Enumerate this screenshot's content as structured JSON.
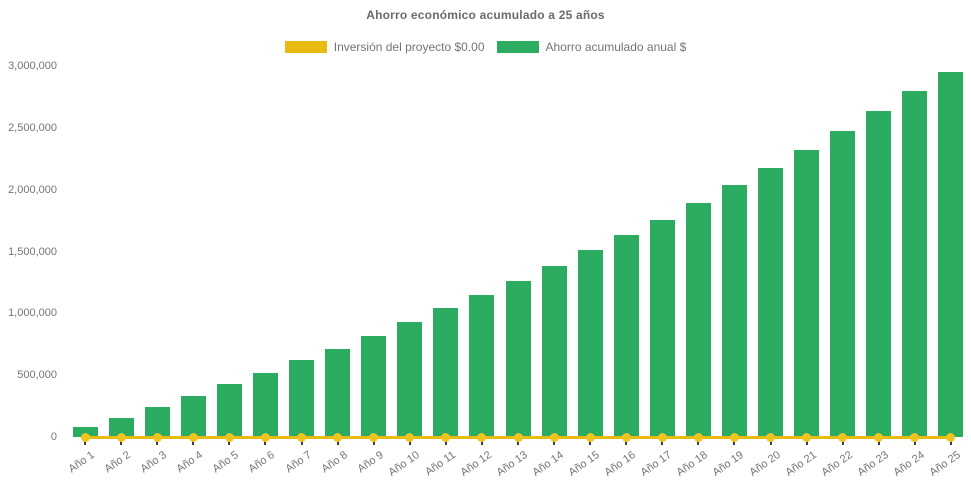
{
  "chart_data": {
    "type": "bar",
    "title": "Ahorro económico acumulado a 25 años",
    "categories": [
      "Año 1",
      "Año 2",
      "Año 3",
      "Año 4",
      "Año 5",
      "Año 6",
      "Año 7",
      "Año 8",
      "Año 9",
      "Año 10",
      "Año 11",
      "Año 12",
      "Año 13",
      "Año 14",
      "Año 15",
      "Año 16",
      "Año 17",
      "Año 18",
      "Año 19",
      "Año 20",
      "Año 21",
      "Año 22",
      "Año 23",
      "Año 24",
      "Año 25"
    ],
    "series": [
      {
        "name": "Inversión del proyecto $0.00",
        "type": "line",
        "color": "#E9BB10",
        "point_color": "#F0C51F",
        "values": [
          0,
          0,
          0,
          0,
          0,
          0,
          0,
          0,
          0,
          0,
          0,
          0,
          0,
          0,
          0,
          0,
          0,
          0,
          0,
          0,
          0,
          0,
          0,
          0,
          0
        ]
      },
      {
        "name": "Ahorro acumulado anual $",
        "type": "bar",
        "color": "#2BAC60",
        "values": [
          80000,
          155000,
          240000,
          335000,
          425000,
          520000,
          620000,
          715000,
          820000,
          930000,
          1040000,
          1150000,
          1265000,
          1385000,
          1510000,
          1635000,
          1755000,
          1895000,
          2035000,
          2175000,
          2320000,
          2475000,
          2635000,
          2795000,
          2955000
        ]
      }
    ],
    "ylim": [
      0,
      3000000
    ],
    "ytick_values": [
      0,
      500000,
      1000000,
      1500000,
      2000000,
      2500000,
      3000000
    ],
    "ytick_labels": [
      "0",
      "500,000",
      "1,000,000",
      "1,500,000",
      "2,000,000",
      "2,500,000",
      "3,000,000"
    ],
    "grid": false,
    "legend_position": "top",
    "text_color": "#757575",
    "title_color": "#6a6a6a",
    "background_color": "#ffffff"
  }
}
